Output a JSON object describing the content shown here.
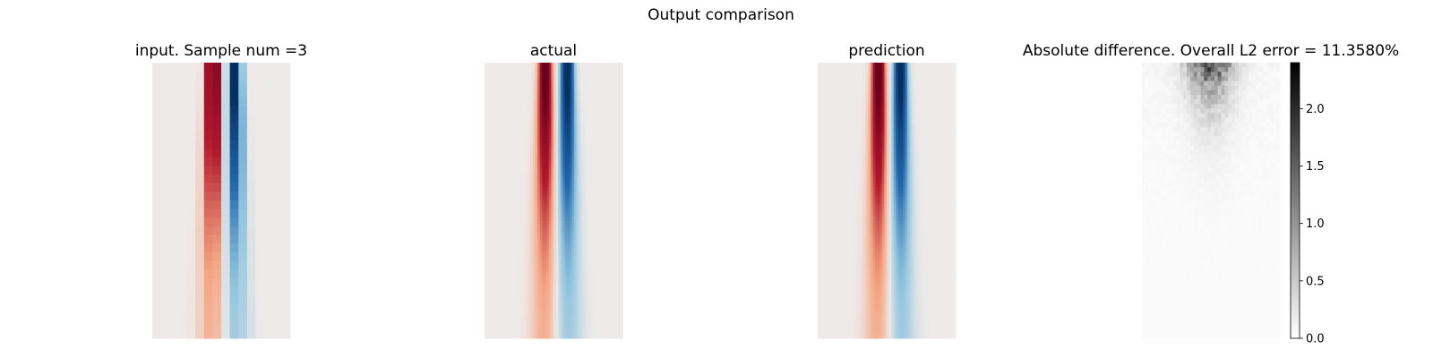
{
  "figure": {
    "suptitle": "Output comparison"
  },
  "chart_data": [
    {
      "type": "heatmap",
      "title": "input. Sample num =3",
      "colormap": "diverging-red-blue",
      "grid": false,
      "axes_visible": false,
      "resolution": "coarse",
      "description_values": "two vertical stripes: positive (red) on left, negative (blue) on right, strongest at top and fading downward"
    },
    {
      "type": "heatmap",
      "title": "actual",
      "colormap": "diverging-red-blue",
      "grid": false,
      "axes_visible": false,
      "resolution": "fine"
    },
    {
      "type": "heatmap",
      "title": "prediction",
      "colormap": "diverging-red-blue",
      "grid": false,
      "axes_visible": false,
      "resolution": "fine"
    },
    {
      "type": "heatmap",
      "title": "Absolute difference. Overall L2 error = 11.3580%",
      "colormap": "greys",
      "grid": false,
      "axes_visible": false,
      "colorbar": {
        "range": [
          0.0,
          2.4
        ],
        "ticks": [
          0.0,
          0.5,
          1.0,
          1.5,
          2.0
        ],
        "tick_labels": [
          "0.0",
          "0.5",
          "1.0",
          "1.5",
          "2.0"
        ]
      }
    }
  ],
  "colors": {
    "positive": "#67001f",
    "negative": "#053061",
    "neutral": "#eeeae9",
    "background": "#ffffff"
  }
}
